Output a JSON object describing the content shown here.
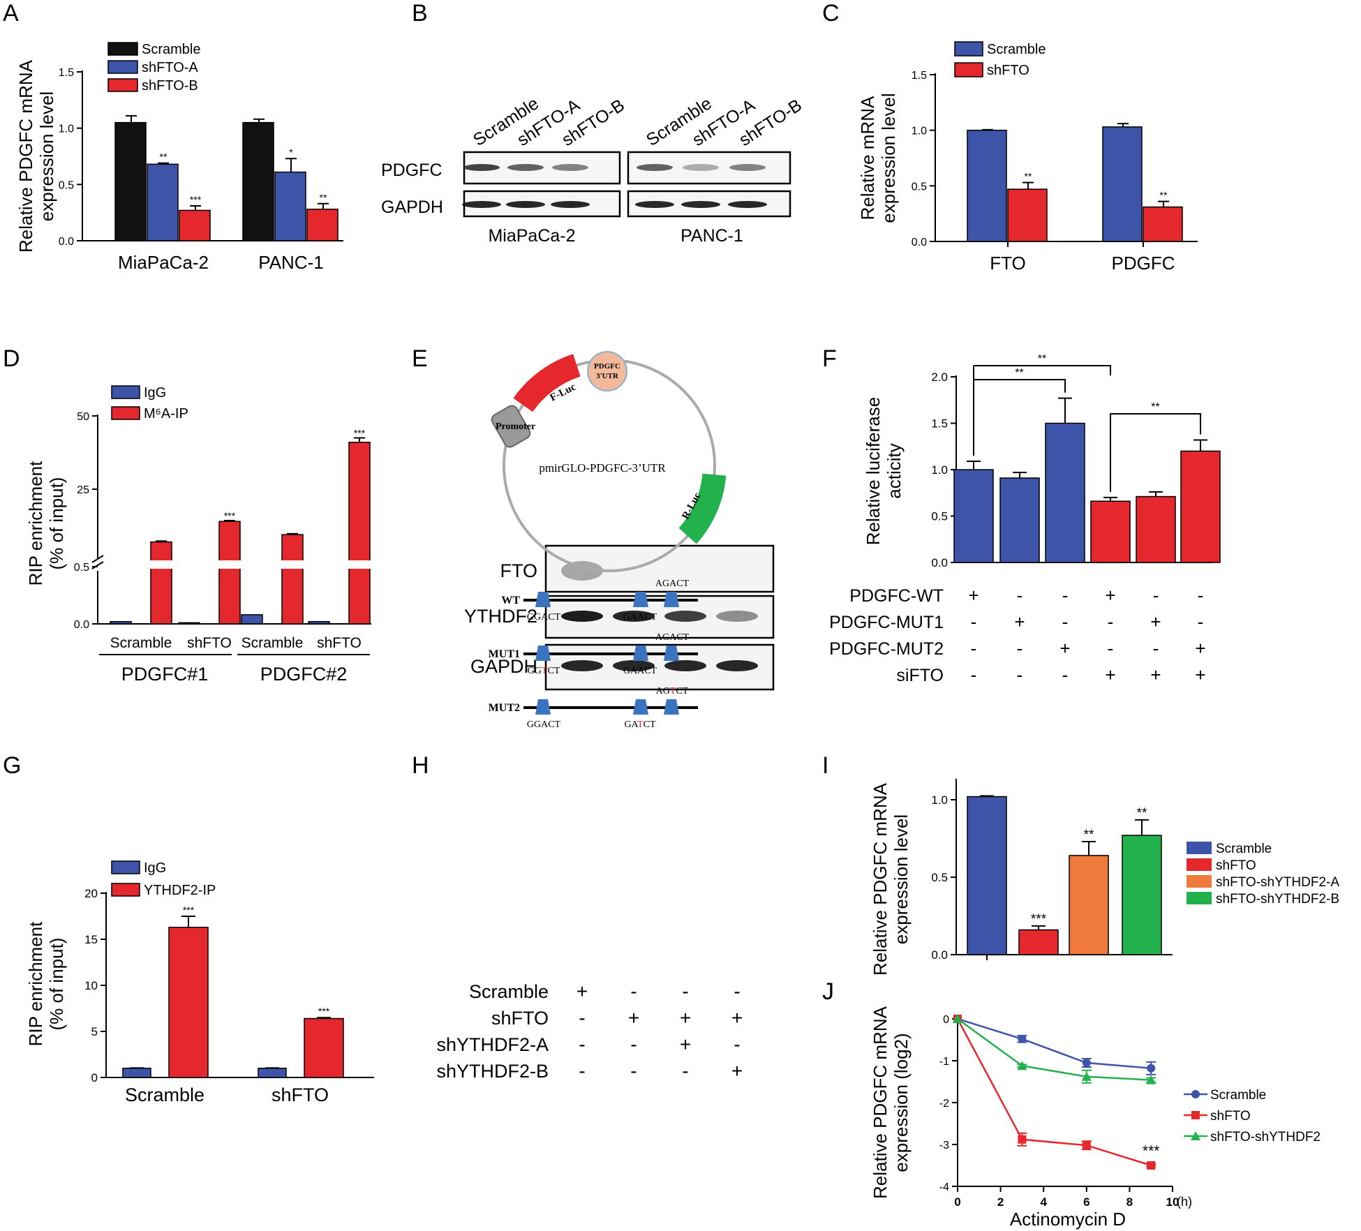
{
  "colors": {
    "black": "#111111",
    "blue": "#3d54a8",
    "red": "#e5282d",
    "orange": "#ef7a3c",
    "green": "#23b14d",
    "gray": "#999999",
    "pink": "#f2b99a",
    "grayblock": "#9a9a9a",
    "triangle": "#3a74c0"
  },
  "panels": {
    "A": "A",
    "B": "B",
    "C": "C",
    "D": "D",
    "E": "E",
    "F": "F",
    "G": "G",
    "H": "H",
    "I": "I",
    "J": "J"
  },
  "chart_data": [
    {
      "panel": "A",
      "type": "bar",
      "ylabel": [
        "Relative PDGFC mRNA",
        "expression level"
      ],
      "ylim": [
        0,
        1.5
      ],
      "yticks": [
        "0.0",
        "0.5",
        "1.0",
        "1.5"
      ],
      "categories": [
        "MiaPaCa-2",
        "PANC-1"
      ],
      "series": [
        {
          "name": "Scramble",
          "color": "black",
          "values": [
            1.05,
            1.05
          ],
          "errors": [
            0.06,
            0.03
          ],
          "sig": [
            "",
            ""
          ]
        },
        {
          "name": "shFTO-A",
          "color": "blue",
          "values": [
            0.68,
            0.61
          ],
          "errors": [
            0.01,
            0.12
          ],
          "sig": [
            "**",
            "*"
          ]
        },
        {
          "name": "shFTO-B",
          "color": "red",
          "values": [
            0.27,
            0.28
          ],
          "errors": [
            0.04,
            0.05
          ],
          "sig": [
            "***",
            "**"
          ]
        }
      ]
    },
    {
      "panel": "C",
      "type": "bar",
      "ylabel": [
        "Relative mRNA",
        "expression level"
      ],
      "ylim": [
        0,
        1.5
      ],
      "yticks": [
        "0.0",
        "0.5",
        "1.0",
        "1.5"
      ],
      "categories": [
        "FTO",
        "PDGFC"
      ],
      "series": [
        {
          "name": "Scramble",
          "color": "blue",
          "values": [
            1.0,
            1.03
          ],
          "errors": [
            0.005,
            0.03
          ],
          "sig": [
            "",
            ""
          ]
        },
        {
          "name": "shFTO",
          "color": "red",
          "values": [
            0.47,
            0.31
          ],
          "errors": [
            0.06,
            0.05
          ],
          "sig": [
            "**",
            "**"
          ]
        }
      ]
    },
    {
      "panel": "D",
      "type": "bar",
      "broken_axis": true,
      "ylabel": [
        "RIP enrichment",
        "(% of input)"
      ],
      "yticks_upper": [
        "25",
        "50"
      ],
      "yticks_lower": [
        "0.0",
        "0.5"
      ],
      "categories": [
        "Scramble",
        "shFTO",
        "Scramble",
        "shFTO"
      ],
      "groups": [
        "PDGFC#1",
        "PDGFC#2"
      ],
      "series": [
        {
          "name": "IgG",
          "color": "blue",
          "values": [
            0.02,
            0.01,
            0.08,
            0.02
          ],
          "sig": [
            "",
            "",
            "",
            ""
          ]
        },
        {
          "name": "M⁶A-IP",
          "color": "red",
          "values": [
            7,
            14,
            9.5,
            41
          ],
          "errors": [
            0.3,
            0.3,
            0.3,
            1.5
          ],
          "sig": [
            "",
            "***",
            "",
            "***"
          ]
        }
      ]
    },
    {
      "panel": "F",
      "type": "bar",
      "ylabel": [
        "Relative luciferase",
        "acticity"
      ],
      "ylim": [
        0,
        2.0
      ],
      "yticks": [
        "0.0",
        "0.5",
        "1.0",
        "1.5",
        "2.0"
      ],
      "values": [
        1.0,
        0.91,
        1.5,
        0.66,
        0.71,
        1.2
      ],
      "errors": [
        0.09,
        0.06,
        0.27,
        0.04,
        0.05,
        0.12
      ],
      "colors": [
        "blue",
        "blue",
        "blue",
        "red",
        "red",
        "red"
      ],
      "brackets": [
        {
          "from": 0,
          "to": 3,
          "label": "**"
        },
        {
          "from": 0,
          "to": 2,
          "label": "**"
        },
        {
          "from": 3,
          "to": 5,
          "label": "**"
        }
      ],
      "rows": [
        {
          "label": "PDGFC-WT",
          "marks": [
            "+",
            "-",
            "-",
            "+",
            "-",
            "-"
          ]
        },
        {
          "label": "PDGFC-MUT1",
          "marks": [
            "-",
            "+",
            "-",
            "-",
            "+",
            "-"
          ]
        },
        {
          "label": "PDGFC-MUT2",
          "marks": [
            "-",
            "-",
            "+",
            "-",
            "-",
            "+"
          ]
        },
        {
          "label": "siFTO",
          "marks": [
            "-",
            "-",
            "-",
            "+",
            "+",
            "+"
          ]
        }
      ]
    },
    {
      "panel": "G",
      "type": "bar",
      "ylabel": [
        "RIP enrichment",
        "(% of input)"
      ],
      "ylim": [
        0,
        20
      ],
      "yticks": [
        "0",
        "5",
        "10",
        "15",
        "20"
      ],
      "categories": [
        "Scramble",
        "shFTO"
      ],
      "series": [
        {
          "name": "IgG",
          "color": "blue",
          "values": [
            1.0,
            1.0
          ],
          "errors": [
            0.03,
            0.03
          ],
          "sig": [
            "",
            ""
          ]
        },
        {
          "name": "YTHDF2-IP",
          "color": "red",
          "values": [
            16.3,
            6.4
          ],
          "errors": [
            1.2,
            0.1
          ],
          "sig": [
            "***",
            "***"
          ]
        }
      ]
    },
    {
      "panel": "I",
      "type": "bar",
      "ylabel": [
        "Relative PDGFC mRNA",
        "expression level"
      ],
      "ylim": [
        0,
        1.0
      ],
      "yticks": [
        "0.0",
        "0.5",
        "1.0"
      ],
      "categories": [
        "Scramble",
        "shFTO",
        "shFTO-shYTHDF2-A",
        "shFTO-shYTHDF2-B"
      ],
      "values": [
        1.02,
        0.16,
        0.64,
        0.77
      ],
      "errors": [
        0.005,
        0.025,
        0.09,
        0.1
      ],
      "colors": [
        "blue",
        "red",
        "orange",
        "green"
      ],
      "sig": [
        "",
        "***",
        "**",
        "**"
      ]
    },
    {
      "panel": "J",
      "type": "line",
      "xlabel": "Actinomycin D",
      "xunit": "(h)",
      "ylabel": [
        "Relative PDGFC mRNA",
        "expression (log2)"
      ],
      "xlim": [
        0,
        10
      ],
      "ylim": [
        -4,
        0
      ],
      "xticks": [
        "0",
        "2",
        "4",
        "6",
        "8",
        "10"
      ],
      "yticks": [
        "0",
        "-1",
        "-2",
        "-3",
        "-4"
      ],
      "x": [
        0,
        3,
        6,
        9
      ],
      "series": [
        {
          "name": "Scramble",
          "color": "blue",
          "marker": "circle",
          "values": [
            0,
            -0.48,
            -1.05,
            -1.18
          ],
          "errors": [
            0.02,
            0.08,
            0.1,
            0.15
          ]
        },
        {
          "name": "shFTO",
          "color": "red",
          "marker": "square",
          "values": [
            0,
            -2.88,
            -3.02,
            -3.5
          ],
          "errors": [
            0.02,
            0.15,
            0.1,
            0.03
          ]
        },
        {
          "name": "shFTO-shYTHDF2",
          "color": "green",
          "marker": "triangle",
          "values": [
            0,
            -1.12,
            -1.38,
            -1.46
          ],
          "errors": [
            0.02,
            0.03,
            0.15,
            0.05
          ]
        }
      ],
      "annotation": "***"
    }
  ],
  "blots": {
    "B": {
      "lanes": [
        "Scramble",
        "shFTO-A",
        "shFTO-B",
        "Scramble",
        "shFTO-A",
        "shFTO-B"
      ],
      "rows": [
        "PDGFC",
        "GAPDH"
      ],
      "cells": [
        "MiaPaCa-2",
        "PANC-1"
      ]
    },
    "H": {
      "rows": [
        "FTO",
        "YTHDF2",
        "GAPDH"
      ],
      "table": [
        {
          "label": "Scramble",
          "marks": [
            "+",
            "-",
            "-",
            "-"
          ]
        },
        {
          "label": "shFTO",
          "marks": [
            "-",
            "+",
            "+",
            "+"
          ]
        },
        {
          "label": "shYTHDF2-A",
          "marks": [
            "-",
            "-",
            "+",
            "-"
          ]
        },
        {
          "label": "shYTHDF2-B",
          "marks": [
            "-",
            "-",
            "-",
            "+"
          ]
        }
      ]
    }
  },
  "diagram_E": {
    "promoter": "Promoter",
    "fluc": "F-Luc",
    "utr": [
      "PDGFC",
      "3'UTR"
    ],
    "rluc": "R-Luc",
    "plasmid": "pmirGLO-PDGFC-3’UTR",
    "constructs": [
      {
        "name": "WT",
        "top": "AGACT",
        "bottom": [
          {
            "parts": [
              "GGACT"
            ]
          },
          {
            "parts": [
              "GAACT"
            ]
          }
        ],
        "top_parts": [
          "AGACT"
        ]
      },
      {
        "name": "MUT1",
        "top": "AGACT",
        "bottom": [
          {
            "parts": [
              "GG",
              "T",
              "CT"
            ]
          },
          {
            "parts": [
              "GAACT"
            ]
          }
        ],
        "top_parts": [
          "AGACT"
        ]
      },
      {
        "name": "MUT2",
        "top": "AGTCT",
        "bottom": [
          {
            "parts": [
              "GGACT"
            ]
          },
          {
            "parts": [
              "GA",
              "T",
              "CT"
            ]
          }
        ],
        "top_parts": [
          "AG",
          "T",
          "CT"
        ]
      }
    ]
  }
}
